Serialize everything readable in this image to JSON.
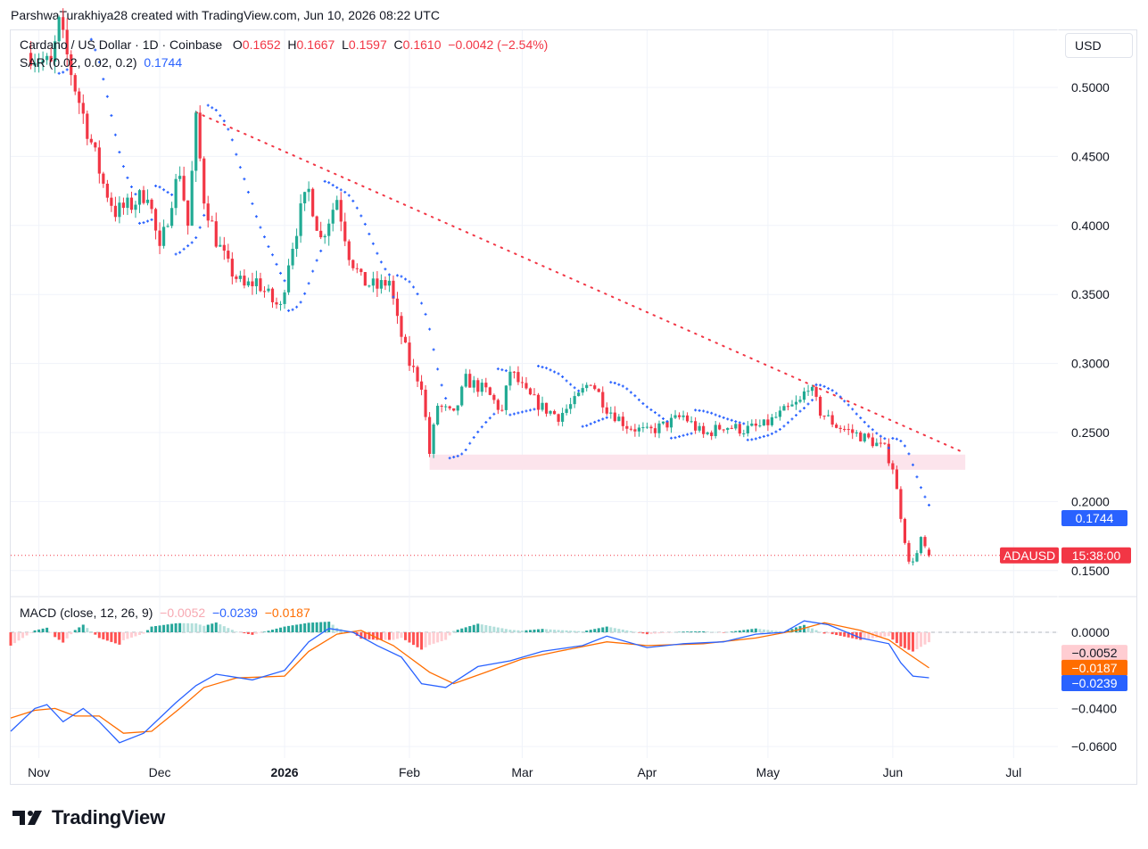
{
  "header": {
    "attribution": "ParshwaTurakhiya28 created with TradingView.com, Jun 10, 2026 08:22 UTC"
  },
  "legend": {
    "symbol": "Cardano / US Dollar · 1D · Coinbase",
    "o_label": "O",
    "o_value": "0.1652",
    "h_label": "H",
    "h_value": "0.1667",
    "l_label": "L",
    "l_value": "0.1597",
    "c_label": "C",
    "c_value": "0.1610",
    "change": "−0.0042 (−2.54%)",
    "sar_label": "SAR (0.02, 0.02, 0.2)",
    "sar_value": "0.1744",
    "macd_label": "MACD (close, 12, 26, 9)",
    "macd_hist": "−0.0052",
    "macd_line": "−0.0239",
    "macd_signal": "−0.0187"
  },
  "currency_button": "USD",
  "branding": {
    "logo_text": "TradingView"
  },
  "colors": {
    "up": "#22ab94",
    "down": "#f23645",
    "sar": "#2962ff",
    "macd": "#2962ff",
    "signal": "#ff6d00",
    "hist_up_strong": "#26a69a",
    "hist_up_weak": "#b2dfdb",
    "hist_down_strong": "#ff5252",
    "hist_down_weak": "#ffcdd2",
    "zone": "#fce4ec",
    "trendline": "#f23645"
  },
  "chart_data": [
    {
      "type": "candlestick",
      "title": "Cardano / US Dollar · 1D · Coinbase",
      "ylim": [
        0.135,
        0.535
      ],
      "y_ticks": [
        "0.5000",
        "0.4500",
        "0.4000",
        "0.3500",
        "0.3000",
        "0.2500",
        "0.2000",
        "0.1500"
      ],
      "x_ticks": [
        {
          "label": "Nov",
          "date": "2025-11-01"
        },
        {
          "label": "Dec",
          "date": "2025-12-01"
        },
        {
          "label": "2026",
          "date": "2026-01-01",
          "bold": true
        },
        {
          "label": "Feb",
          "date": "2026-02-01"
        },
        {
          "label": "Mar",
          "date": "2026-03-01"
        },
        {
          "label": "Apr",
          "date": "2026-04-01"
        },
        {
          "label": "May",
          "date": "2026-05-01"
        },
        {
          "label": "Jun",
          "date": "2026-06-01"
        },
        {
          "label": "Jul",
          "date": "2026-07-01"
        }
      ],
      "x_range": [
        "2025-10-25",
        "2026-07-12"
      ],
      "price_path": [
        [
          "2025-10-30",
          0.525
        ],
        [
          "2025-11-04",
          0.515
        ],
        [
          "2025-11-06",
          0.545
        ],
        [
          "2025-11-10",
          0.5
        ],
        [
          "2025-11-13",
          0.47
        ],
        [
          "2025-11-17",
          0.43
        ],
        [
          "2025-11-20",
          0.41
        ],
        [
          "2025-11-24",
          0.415
        ],
        [
          "2025-11-28",
          0.425
        ],
        [
          "2025-12-01",
          0.38
        ],
        [
          "2025-12-04",
          0.42
        ],
        [
          "2025-12-06",
          0.44
        ],
        [
          "2025-12-08",
          0.4
        ],
        [
          "2025-12-10",
          0.475
        ],
        [
          "2025-12-12",
          0.42
        ],
        [
          "2025-12-15",
          0.39
        ],
        [
          "2025-12-18",
          0.37
        ],
        [
          "2025-12-22",
          0.355
        ],
        [
          "2025-12-25",
          0.36
        ],
        [
          "2025-12-29",
          0.345
        ],
        [
          "2025-12-31",
          0.34
        ],
        [
          "2026-01-02",
          0.375
        ],
        [
          "2026-01-05",
          0.41
        ],
        [
          "2026-01-07",
          0.425
        ],
        [
          "2026-01-10",
          0.39
        ],
        [
          "2026-01-14",
          0.42
        ],
        [
          "2026-01-17",
          0.38
        ],
        [
          "2026-01-20",
          0.36
        ],
        [
          "2026-01-24",
          0.355
        ],
        [
          "2026-01-27",
          0.36
        ],
        [
          "2026-01-29",
          0.33
        ],
        [
          "2026-02-01",
          0.3
        ],
        [
          "2026-02-04",
          0.285
        ],
        [
          "2026-02-06",
          0.235
        ],
        [
          "2026-02-08",
          0.27
        ],
        [
          "2026-02-12",
          0.262
        ],
        [
          "2026-02-15",
          0.288
        ],
        [
          "2026-02-20",
          0.28
        ],
        [
          "2026-02-24",
          0.265
        ],
        [
          "2026-02-26",
          0.295
        ],
        [
          "2026-03-02",
          0.278
        ],
        [
          "2026-03-06",
          0.268
        ],
        [
          "2026-03-10",
          0.262
        ],
        [
          "2026-03-14",
          0.272
        ],
        [
          "2026-03-18",
          0.288
        ],
        [
          "2026-03-22",
          0.268
        ],
        [
          "2026-03-27",
          0.255
        ],
        [
          "2026-04-01",
          0.25
        ],
        [
          "2026-04-05",
          0.255
        ],
        [
          "2026-04-10",
          0.262
        ],
        [
          "2026-04-15",
          0.248
        ],
        [
          "2026-04-20",
          0.255
        ],
        [
          "2026-04-25",
          0.252
        ],
        [
          "2026-04-30",
          0.255
        ],
        [
          "2026-05-05",
          0.265
        ],
        [
          "2026-05-09",
          0.272
        ],
        [
          "2026-05-11",
          0.285
        ],
        [
          "2026-05-14",
          0.265
        ],
        [
          "2026-05-18",
          0.255
        ],
        [
          "2026-05-22",
          0.25
        ],
        [
          "2026-05-26",
          0.245
        ],
        [
          "2026-05-30",
          0.238
        ],
        [
          "2026-06-01",
          0.225
        ],
        [
          "2026-06-03",
          0.19
        ],
        [
          "2026-06-05",
          0.155
        ],
        [
          "2026-06-07",
          0.162
        ],
        [
          "2026-06-08",
          0.172
        ],
        [
          "2026-06-10",
          0.161
        ]
      ],
      "last_candle": {
        "date": "2026-06-10",
        "open": 0.1652,
        "high": 0.1667,
        "low": 0.1597,
        "close": 0.161
      },
      "sar": {
        "name": "SAR (0.02, 0.02, 0.2)",
        "last": 0.1744
      },
      "trendline": {
        "from": [
          "2025-12-10",
          0.482
        ],
        "to": [
          "2026-06-19",
          0.235
        ],
        "style": "dotted"
      },
      "support_zone": {
        "from": "2026-02-06",
        "to": "2026-06-19",
        "low": 0.223,
        "high": 0.234
      },
      "current_price_line": 0.161,
      "price_label": {
        "symbol": "ADAUSD",
        "countdown": "15:38:00"
      },
      "axis_badges": {
        "sar_value": "0.1744"
      }
    },
    {
      "type": "line",
      "title": "MACD (close, 12, 26, 9)",
      "ylim": [
        -0.064,
        0.004
      ],
      "y_ticks": [
        "0.0000",
        "−0.0400",
        "−0.0600"
      ],
      "series": [
        {
          "name": "MACD",
          "last": -0.0239,
          "points": [
            [
              "2025-10-25",
              -0.052
            ],
            [
              "2025-10-31",
              -0.04
            ],
            [
              "2025-11-03",
              -0.038
            ],
            [
              "2025-11-07",
              -0.047
            ],
            [
              "2025-11-12",
              -0.04
            ],
            [
              "2025-11-16",
              -0.047
            ],
            [
              "2025-11-21",
              -0.058
            ],
            [
              "2025-11-27",
              -0.053
            ],
            [
              "2025-12-05",
              -0.037
            ],
            [
              "2025-12-10",
              -0.028
            ],
            [
              "2025-12-15",
              -0.022
            ],
            [
              "2025-12-24",
              -0.025
            ],
            [
              "2026-01-01",
              -0.02
            ],
            [
              "2026-01-07",
              -0.005
            ],
            [
              "2026-01-12",
              0.002
            ],
            [
              "2026-01-18",
              0.0
            ],
            [
              "2026-01-24",
              -0.007
            ],
            [
              "2026-01-30",
              -0.013
            ],
            [
              "2026-02-04",
              -0.027
            ],
            [
              "2026-02-10",
              -0.029
            ],
            [
              "2026-02-18",
              -0.018
            ],
            [
              "2026-02-26",
              -0.015
            ],
            [
              "2026-03-06",
              -0.01
            ],
            [
              "2026-03-16",
              -0.007
            ],
            [
              "2026-03-22",
              -0.002
            ],
            [
              "2026-04-01",
              -0.008
            ],
            [
              "2026-04-10",
              -0.006
            ],
            [
              "2026-04-20",
              -0.005
            ],
            [
              "2026-04-28",
              -0.001
            ],
            [
              "2026-05-05",
              0.0
            ],
            [
              "2026-05-10",
              0.006
            ],
            [
              "2026-05-16",
              0.004
            ],
            [
              "2026-05-24",
              -0.003
            ],
            [
              "2026-05-31",
              -0.006
            ],
            [
              "2026-06-03",
              -0.016
            ],
            [
              "2026-06-06",
              -0.023
            ],
            [
              "2026-06-10",
              -0.0239
            ]
          ]
        },
        {
          "name": "Signal",
          "last": -0.0187,
          "points": [
            [
              "2025-10-25",
              -0.045
            ],
            [
              "2025-10-31",
              -0.041
            ],
            [
              "2025-11-05",
              -0.04
            ],
            [
              "2025-11-10",
              -0.044
            ],
            [
              "2025-11-16",
              -0.044
            ],
            [
              "2025-11-22",
              -0.053
            ],
            [
              "2025-11-29",
              -0.052
            ],
            [
              "2025-12-06",
              -0.04
            ],
            [
              "2025-12-12",
              -0.029
            ],
            [
              "2025-12-20",
              -0.024
            ],
            [
              "2026-01-01",
              -0.023
            ],
            [
              "2026-01-07",
              -0.01
            ],
            [
              "2026-01-14",
              -0.001
            ],
            [
              "2026-01-20",
              0.001
            ],
            [
              "2026-01-28",
              -0.007
            ],
            [
              "2026-02-06",
              -0.021
            ],
            [
              "2026-02-12",
              -0.027
            ],
            [
              "2026-02-20",
              -0.021
            ],
            [
              "2026-03-01",
              -0.014
            ],
            [
              "2026-03-10",
              -0.01
            ],
            [
              "2026-03-22",
              -0.005
            ],
            [
              "2026-04-01",
              -0.007
            ],
            [
              "2026-04-15",
              -0.006
            ],
            [
              "2026-04-28",
              -0.003
            ],
            [
              "2026-05-08",
              0.001
            ],
            [
              "2026-05-15",
              0.005
            ],
            [
              "2026-05-24",
              0.001
            ],
            [
              "2026-05-31",
              -0.004
            ],
            [
              "2026-06-04",
              -0.01
            ],
            [
              "2026-06-10",
              -0.0187
            ]
          ]
        }
      ],
      "histogram": {
        "last": -0.0052
      }
    }
  ]
}
